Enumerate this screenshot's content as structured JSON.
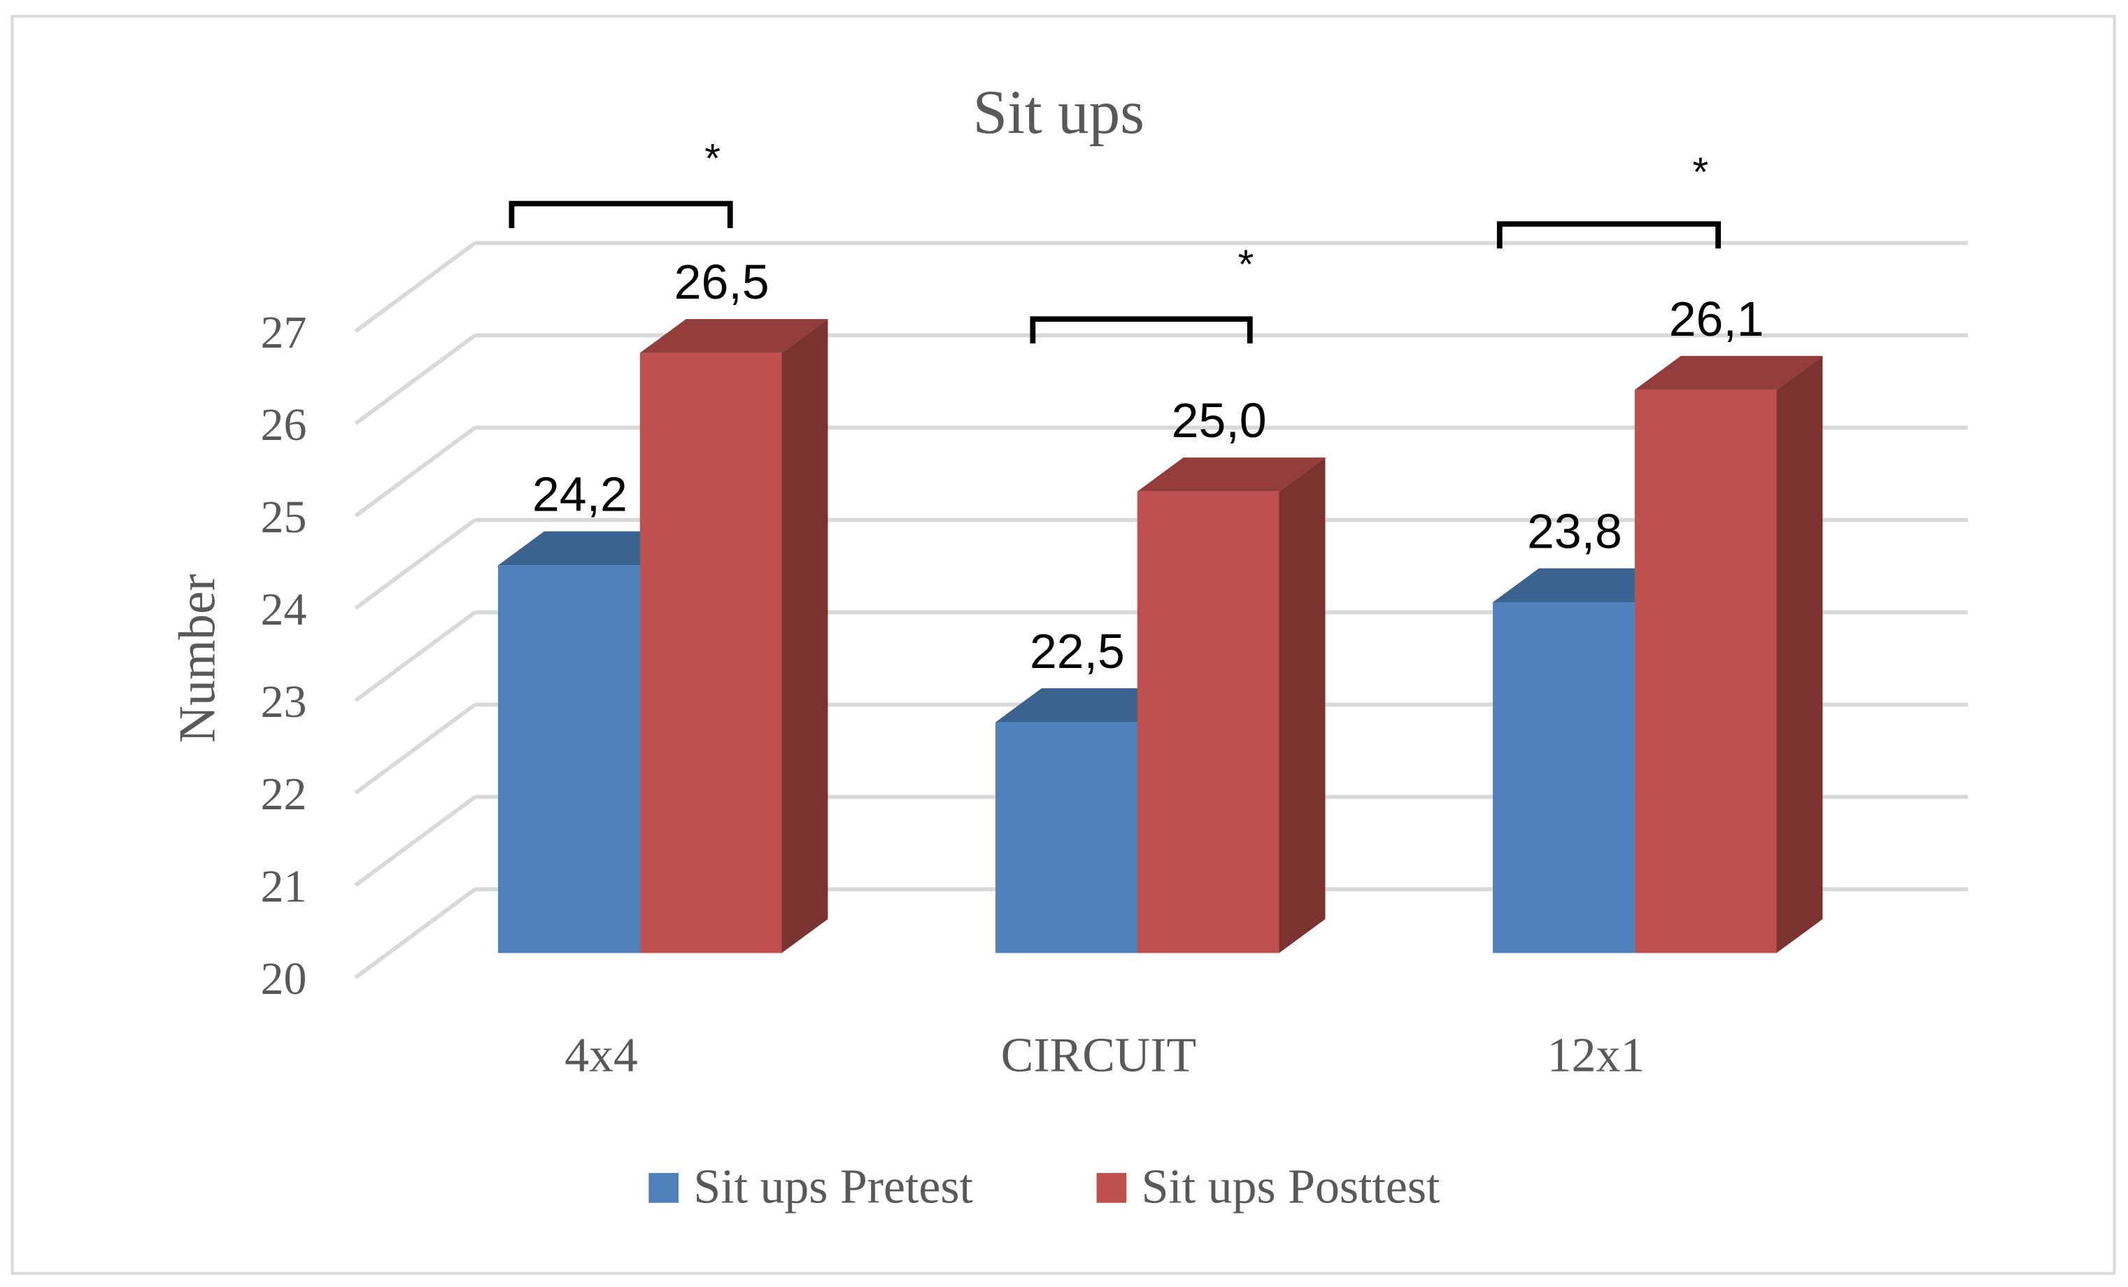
{
  "chart_data": {
    "type": "bar3d",
    "title": "Sit ups",
    "y_label": "Number",
    "categories": [
      "4x4",
      "CIRCUIT",
      "12x1"
    ],
    "series": [
      {
        "name": "Sit ups Pretest",
        "color": "#4f81bd",
        "values": [
          24.2,
          22.5,
          23.8
        ],
        "value_labels": [
          "24,2",
          "22,5",
          "23,8"
        ]
      },
      {
        "name": "Sit ups Posttest",
        "color": "#c0504d",
        "values": [
          26.5,
          25.0,
          26.1
        ],
        "value_labels": [
          "26,5",
          "25,0",
          "26,1"
        ]
      }
    ],
    "annotations": [
      "*",
      "*",
      "*"
    ],
    "ylim": [
      20,
      27
    ],
    "yticks": [
      20,
      21,
      22,
      23,
      24,
      25,
      26,
      27
    ],
    "grid": true,
    "legend": "bottom"
  }
}
